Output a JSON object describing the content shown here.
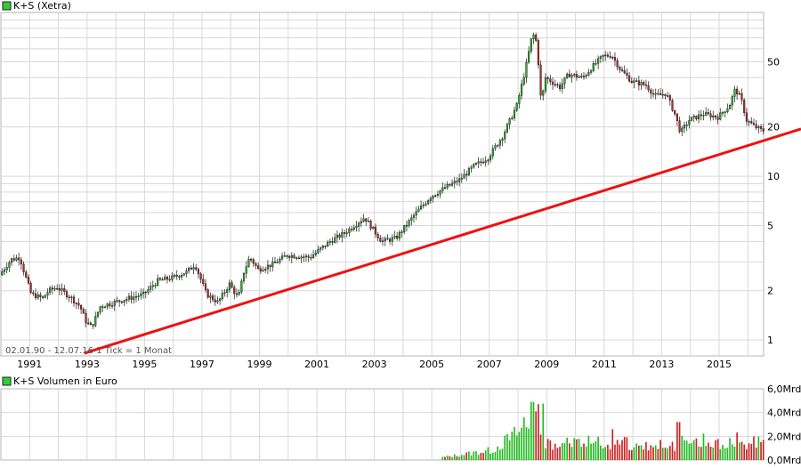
{
  "chart_data": [
    {
      "type": "candlestick",
      "title": "K+S (Xetra)",
      "scale": "log",
      "ylim": [
        0.8,
        100
      ],
      "yticks": [
        1,
        2,
        5,
        10,
        20,
        50
      ],
      "ytick_labels": [
        "1",
        "2",
        "5",
        "10",
        "20",
        "50"
      ],
      "xrange": [
        1990.0,
        2016.55
      ],
      "xticks": [
        1991,
        1993,
        1995,
        1997,
        1999,
        2001,
        2003,
        2005,
        2007,
        2009,
        2011,
        2013,
        2015
      ],
      "xtick_labels": [
        "1991",
        "1993",
        "1995",
        "1997",
        "1999",
        "2001",
        "2003",
        "2005",
        "2007",
        "2009",
        "2011",
        "2013",
        "2015"
      ],
      "info_text": "02.01.90 - 12.07.16   1 Tick = 1 Monat",
      "price_anchors": [
        [
          1990.0,
          2.5
        ],
        [
          1990.4,
          3.1
        ],
        [
          1990.7,
          3.2
        ],
        [
          1990.85,
          2.6
        ],
        [
          1991.1,
          1.9
        ],
        [
          1991.5,
          1.8
        ],
        [
          1991.7,
          2.0
        ],
        [
          1992.0,
          2.1
        ],
        [
          1992.5,
          1.8
        ],
        [
          1992.8,
          1.6
        ],
        [
          1993.0,
          1.3
        ],
        [
          1993.2,
          1.2
        ],
        [
          1993.5,
          1.6
        ],
        [
          1994.0,
          1.7
        ],
        [
          1994.5,
          1.8
        ],
        [
          1995.0,
          1.9
        ],
        [
          1995.5,
          2.3
        ],
        [
          1996.0,
          2.4
        ],
        [
          1996.5,
          2.6
        ],
        [
          1996.8,
          2.9
        ],
        [
          1997.2,
          1.9
        ],
        [
          1997.6,
          1.7
        ],
        [
          1998.0,
          2.2
        ],
        [
          1998.3,
          1.8
        ],
        [
          1998.5,
          2.6
        ],
        [
          1998.7,
          3.2
        ],
        [
          1999.0,
          2.7
        ],
        [
          1999.5,
          2.9
        ],
        [
          2000.0,
          3.3
        ],
        [
          2000.8,
          3.2
        ],
        [
          2001.5,
          4.0
        ],
        [
          2002.0,
          4.5
        ],
        [
          2002.7,
          5.6
        ],
        [
          2003.3,
          4.0
        ],
        [
          2003.8,
          4.2
        ],
        [
          2004.5,
          6.0
        ],
        [
          2005.0,
          7.5
        ],
        [
          2005.5,
          8.5
        ],
        [
          2006.0,
          9.5
        ],
        [
          2006.5,
          11.5
        ],
        [
          2007.0,
          13.0
        ],
        [
          2007.5,
          17.5
        ],
        [
          2008.0,
          27.0
        ],
        [
          2008.3,
          45.0
        ],
        [
          2008.55,
          75.0
        ],
        [
          2008.7,
          65.0
        ],
        [
          2008.85,
          28.0
        ],
        [
          2009.0,
          40.0
        ],
        [
          2009.5,
          35.0
        ],
        [
          2009.8,
          42.0
        ],
        [
          2010.3,
          40.0
        ],
        [
          2010.7,
          48.0
        ],
        [
          2011.0,
          54.0
        ],
        [
          2011.3,
          55.0
        ],
        [
          2011.6,
          45.0
        ],
        [
          2012.0,
          38.0
        ],
        [
          2012.5,
          36.0
        ],
        [
          2012.8,
          31.0
        ],
        [
          2013.2,
          32.0
        ],
        [
          2013.5,
          24.0
        ],
        [
          2013.7,
          18.5
        ],
        [
          2014.0,
          22.0
        ],
        [
          2014.5,
          24.0
        ],
        [
          2015.0,
          23.0
        ],
        [
          2015.4,
          27.0
        ],
        [
          2015.6,
          34.0
        ],
        [
          2015.8,
          30.0
        ],
        [
          2016.0,
          22.0
        ],
        [
          2016.3,
          20.0
        ],
        [
          2016.55,
          19.0
        ]
      ],
      "trendline": {
        "color": "#ee1111",
        "points": [
          [
            1992.9,
            0.83
          ],
          [
            2016.55,
            16.5
          ]
        ]
      },
      "colors": {
        "up": "#22bb22",
        "down": "#cc2222",
        "wick": "#333333",
        "grid": "#d8d8d8",
        "legend_box": "#33cc33"
      }
    },
    {
      "type": "bar",
      "title": "K+S Volumen in Euro",
      "unit": "Mrd",
      "ylim": [
        0,
        6
      ],
      "yticks": [
        0,
        2,
        4,
        6
      ],
      "ytick_labels": [
        "0,0Mrd",
        "2,0Mrd",
        "4,0Mrd",
        "6,0Mrd"
      ],
      "start": 2005.3,
      "peak": 4.9,
      "peak_at": 2008.5
    }
  ]
}
